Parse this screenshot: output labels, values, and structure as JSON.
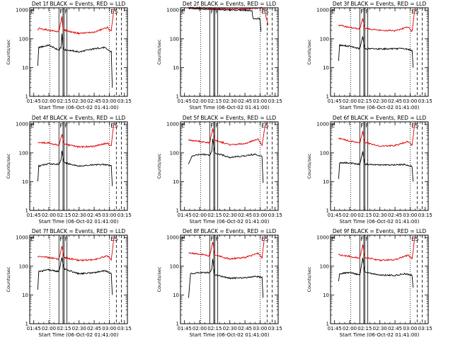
{
  "colors": {
    "events": "#000000",
    "lld": "#e00000"
  },
  "x_ticks": [
    "01:45",
    "02:00",
    "02:15",
    "02:30",
    "02:45",
    "03:00",
    "03:15"
  ],
  "y_ticks": [
    "1",
    "10",
    "100",
    "1000"
  ],
  "xlabel": "Start Time (06-Oct-02 01:41:00)",
  "ylabel": "Counts/sec",
  "marker_labels": {
    "F": "F",
    "E": "E",
    "S": "S"
  },
  "chart_data": [
    {
      "type": "line",
      "log_y": true,
      "ylim": [
        1,
        1200
      ],
      "title": "Det 1f BLACK = Events, RED = LLD",
      "series": [
        {
          "color": "black",
          "x": [
            "01:49",
            "01:50",
            "02:00",
            "02:10",
            "02:12",
            "02:13",
            "02:14",
            "02:15",
            "02:20",
            "02:30",
            "02:45",
            "02:55",
            "03:02",
            "03:03"
          ],
          "y": [
            12,
            50,
            60,
            40,
            50,
            150,
            55,
            42,
            40,
            35,
            45,
            50,
            35,
            2
          ]
        },
        {
          "color": "red",
          "x": [
            "01:49",
            "01:50",
            "02:00",
            "02:10",
            "02:13",
            "02:14",
            "02:20",
            "02:30",
            "02:45",
            "02:58",
            "03:02",
            "03:04",
            "03:05"
          ],
          "y": [
            200,
            230,
            200,
            175,
            600,
            210,
            180,
            155,
            170,
            250,
            180,
            800,
            1100
          ]
        }
      ]
    },
    {
      "type": "line",
      "log_y": true,
      "ylim": [
        1,
        1200
      ],
      "title": "Det 2f BLACK = Events, RED = LLD",
      "series": [
        {
          "color": "black",
          "x": [
            "01:49",
            "01:55",
            "02:00",
            "02:15",
            "02:30",
            "02:45",
            "02:52",
            "02:53",
            "03:00",
            "03:01"
          ],
          "y": [
            1150,
            1150,
            1100,
            1050,
            1000,
            1000,
            950,
            500,
            500,
            180
          ]
        },
        {
          "color": "red",
          "x": [
            "01:49",
            "02:00",
            "02:15",
            "02:30",
            "02:45",
            "02:58",
            "03:02",
            "03:04",
            "03:08"
          ],
          "y": [
            1200,
            1200,
            1150,
            1100,
            1100,
            1150,
            1200,
            1100,
            300
          ]
        }
      ]
    },
    {
      "type": "line",
      "log_y": true,
      "ylim": [
        1,
        1200
      ],
      "title": "Det 3f BLACK = Events, RED = LLD",
      "series": [
        {
          "color": "black",
          "x": [
            "01:49",
            "01:50",
            "02:00",
            "02:10",
            "02:13",
            "02:15",
            "02:30",
            "02:45",
            "02:55",
            "03:02",
            "03:03"
          ],
          "y": [
            18,
            60,
            55,
            45,
            120,
            45,
            45,
            45,
            45,
            40,
            10
          ]
        },
        {
          "color": "red",
          "x": [
            "01:49",
            "02:00",
            "02:10",
            "02:13",
            "02:15",
            "02:30",
            "02:45",
            "02:58",
            "03:02",
            "03:04",
            "03:05"
          ],
          "y": [
            300,
            250,
            220,
            500,
            230,
            200,
            190,
            260,
            180,
            700,
            1100
          ]
        }
      ]
    },
    {
      "type": "line",
      "log_y": true,
      "ylim": [
        1,
        1200
      ],
      "title": "Det 4f BLACK = Events, RED = LLD",
      "series": [
        {
          "color": "black",
          "x": [
            "01:49",
            "01:50",
            "02:00",
            "02:10",
            "02:12",
            "02:13",
            "02:15",
            "02:30",
            "02:45",
            "02:55",
            "03:02",
            "03:03"
          ],
          "y": [
            10,
            35,
            42,
            40,
            55,
            120,
            45,
            35,
            38,
            40,
            35,
            7
          ]
        },
        {
          "color": "red",
          "x": [
            "01:49",
            "02:00",
            "02:10",
            "02:13",
            "02:15",
            "02:30",
            "02:45",
            "02:58",
            "03:02",
            "03:04",
            "03:05"
          ],
          "y": [
            230,
            220,
            180,
            450,
            200,
            160,
            170,
            220,
            170,
            800,
            1100
          ]
        }
      ]
    },
    {
      "type": "line",
      "log_y": true,
      "ylim": [
        1,
        1200
      ],
      "title": "Det 5f BLACK = Events, RED = LLD",
      "series": [
        {
          "color": "black",
          "x": [
            "01:49",
            "01:52",
            "02:00",
            "02:10",
            "02:12",
            "02:13",
            "02:15",
            "02:30",
            "02:45",
            "02:55",
            "03:02",
            "03:03"
          ],
          "y": [
            40,
            75,
            90,
            85,
            110,
            300,
            100,
            70,
            80,
            90,
            75,
            9
          ]
        },
        {
          "color": "red",
          "x": [
            "01:49",
            "02:00",
            "02:10",
            "02:13",
            "02:15",
            "02:30",
            "02:45",
            "02:58",
            "03:02",
            "03:05",
            "03:07"
          ],
          "y": [
            280,
            250,
            220,
            700,
            280,
            190,
            210,
            300,
            190,
            900,
            1100
          ]
        }
      ]
    },
    {
      "type": "line",
      "log_y": true,
      "ylim": [
        1,
        1200
      ],
      "title": "Det 6f BLACK = Events, RED = LLD",
      "series": [
        {
          "color": "black",
          "x": [
            "01:49",
            "01:50",
            "02:00",
            "02:10",
            "02:13",
            "02:15",
            "02:30",
            "02:45",
            "02:55",
            "03:02",
            "03:03"
          ],
          "y": [
            12,
            45,
            45,
            40,
            110,
            40,
            38,
            38,
            40,
            33,
            10
          ]
        },
        {
          "color": "red",
          "x": [
            "01:49",
            "02:00",
            "02:10",
            "02:13",
            "02:15",
            "02:30",
            "02:45",
            "02:58",
            "03:02",
            "03:04",
            "03:05"
          ],
          "y": [
            320,
            260,
            220,
            550,
            230,
            170,
            180,
            250,
            180,
            700,
            1100
          ]
        }
      ]
    },
    {
      "type": "line",
      "log_y": true,
      "ylim": [
        1,
        1200
      ],
      "title": "Det 7f BLACK = Events, RED = LLD",
      "series": [
        {
          "color": "black",
          "x": [
            "01:49",
            "01:50",
            "02:00",
            "02:10",
            "02:13",
            "02:15",
            "02:30",
            "02:45",
            "02:55",
            "03:02",
            "03:03"
          ],
          "y": [
            15,
            65,
            75,
            65,
            200,
            80,
            55,
            60,
            70,
            55,
            10
          ]
        },
        {
          "color": "red",
          "x": [
            "01:49",
            "02:00",
            "02:10",
            "02:13",
            "02:15",
            "02:30",
            "02:45",
            "02:58",
            "03:02",
            "03:04",
            "03:05"
          ],
          "y": [
            220,
            200,
            175,
            500,
            200,
            160,
            170,
            230,
            170,
            700,
            1100
          ]
        }
      ]
    },
    {
      "type": "line",
      "log_y": true,
      "ylim": [
        1,
        1200
      ],
      "title": "Det 8f BLACK = Events, RED = LLD",
      "series": [
        {
          "color": "black",
          "x": [
            "01:49",
            "01:51",
            "02:00",
            "02:10",
            "02:12",
            "02:13",
            "02:15",
            "02:30",
            "02:45",
            "02:55",
            "03:02",
            "03:03"
          ],
          "y": [
            8,
            55,
            60,
            60,
            75,
            180,
            50,
            38,
            40,
            45,
            40,
            8
          ]
        },
        {
          "color": "red",
          "x": [
            "01:49",
            "02:00",
            "02:10",
            "02:13",
            "02:15",
            "02:30",
            "02:45",
            "02:58",
            "03:02",
            "03:04",
            "03:05"
          ],
          "y": [
            300,
            260,
            230,
            700,
            240,
            180,
            200,
            280,
            190,
            800,
            1100
          ]
        }
      ]
    },
    {
      "type": "line",
      "log_y": true,
      "ylim": [
        1,
        1200
      ],
      "title": "Det 9f BLACK = Events, RED = LLD",
      "series": [
        {
          "color": "black",
          "x": [
            "01:49",
            "01:50",
            "02:00",
            "02:10",
            "02:13",
            "02:15",
            "02:30",
            "02:45",
            "02:55",
            "03:02",
            "03:03"
          ],
          "y": [
            30,
            55,
            60,
            50,
            200,
            60,
            50,
            48,
            55,
            48,
            18
          ]
        },
        {
          "color": "red",
          "x": [
            "01:49",
            "02:00",
            "02:10",
            "02:13",
            "02:15",
            "02:30",
            "02:45",
            "02:58",
            "03:02",
            "03:04",
            "03:05"
          ],
          "y": [
            250,
            220,
            190,
            550,
            200,
            160,
            170,
            240,
            180,
            700,
            1100
          ]
        }
      ]
    }
  ]
}
